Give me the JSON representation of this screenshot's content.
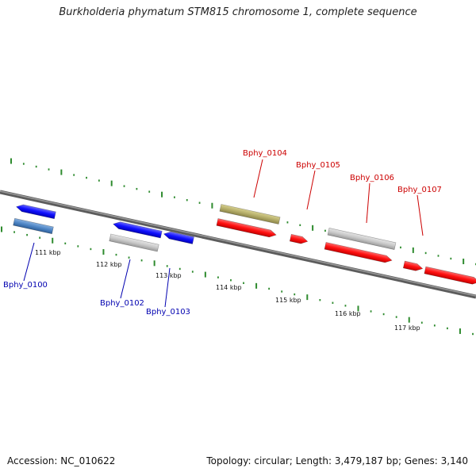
{
  "title": "Burkholderia phymatum STM815 chromosome 1, complete sequence",
  "footer": {
    "accession": "Accession: NC_010622",
    "summary": "Topology: circular; Length: 3,479,187 bp; Genes: 3,140"
  },
  "ticks": [
    "111 kbp",
    "112 kbp",
    "113 kbp",
    "114 kbp",
    "115 kbp",
    "116 kbp",
    "117 kbp"
  ],
  "genes": [
    {
      "id": "Bphy_0100",
      "strand": "reverse",
      "color": "#1a1aff"
    },
    {
      "id": "Bphy_0102",
      "strand": "reverse",
      "color": "#1a1aff"
    },
    {
      "id": "Bphy_0103",
      "strand": "reverse",
      "color": "#1a1aff"
    },
    {
      "id": "Bphy_0104",
      "strand": "forward",
      "color": "#ff1a1a"
    },
    {
      "id": "Bphy_0105",
      "strand": "forward",
      "color": "#ff1a1a"
    },
    {
      "id": "Bphy_0106",
      "strand": "forward",
      "color": "#ff1a1a"
    },
    {
      "id": "Bphy_0107",
      "strand": "forward",
      "color": "#ff1a1a"
    }
  ],
  "colors": {
    "forward": "#ff1a1a",
    "reverse": "#1a1aff",
    "forward_label": "#cc0000",
    "reverse_label": "#0000b0",
    "tick": "#2e8b2e",
    "backbone": "#7a7a7a",
    "gray_feature": "#c8c8c8",
    "olive_feature": "#b5ae6a",
    "steel_feature": "#4f86c6"
  }
}
